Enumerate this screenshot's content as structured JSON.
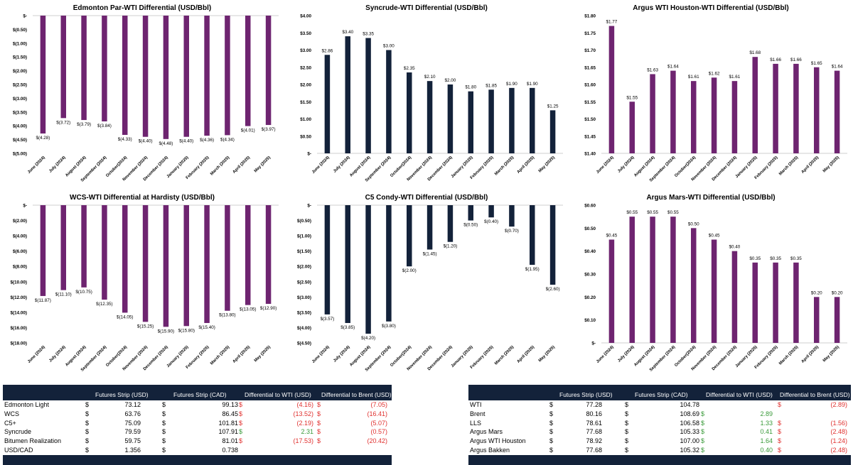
{
  "colors": {
    "purple": "#6e2470",
    "navy": "#13223a",
    "neg": "#e0312f",
    "pos": "#3a9a3a"
  },
  "chart_data": [
    {
      "id": "c1",
      "type": "bar",
      "title": "Edmonton Par-WTI Differential (USD/Bbl)",
      "color": "purple",
      "categories": [
        "June (2024)",
        "July (2024)",
        "August (2024)",
        "September (2024)",
        "October(2024)",
        "November (2024)",
        "December (2024)",
        "January (2025)",
        "February (2025)",
        "March (2025)",
        "April (2025)",
        "May (2025)"
      ],
      "values": [
        -4.28,
        -3.72,
        -3.79,
        -3.84,
        -4.33,
        -4.4,
        -4.48,
        -4.4,
        -4.36,
        -4.34,
        -4.01,
        -3.97
      ],
      "data_labels": [
        "$(4.28)",
        "$(3.72)",
        "$(3.79)",
        "$(3.84)",
        "$(4.33)",
        "$(4.40)",
        "$(4.48)",
        "$(4.40)",
        "$(4.36)",
        "$(4.34)",
        "$(4.01)",
        "$(3.97)"
      ],
      "ylim": [
        -5,
        0
      ],
      "yticks": [
        0,
        -0.5,
        -1,
        -1.5,
        -2,
        -2.5,
        -3,
        -3.5,
        -4,
        -4.5,
        -5
      ],
      "ytick_labels": [
        "$-",
        "$(0.50)",
        "$(1.00)",
        "$(1.50)",
        "$(2.00)",
        "$(2.50)",
        "$(3.00)",
        "$(3.50)",
        "$(4.00)",
        "$(4.50)",
        "$(5.00)"
      ]
    },
    {
      "id": "c2",
      "type": "bar",
      "title": "Syncrude-WTI Differential (USD/Bbl)",
      "color": "navy",
      "categories": [
        "June (2024)",
        "July (2024)",
        "August (2024)",
        "September (2024)",
        "October(2024)",
        "November (2024)",
        "December (2024)",
        "January (2025)",
        "February (2025)",
        "March (2025)",
        "April (2025)",
        "May (2025)"
      ],
      "values": [
        2.86,
        3.4,
        3.35,
        3.0,
        2.35,
        2.1,
        2.0,
        1.8,
        1.85,
        1.9,
        1.9,
        1.25
      ],
      "data_labels": [
        "$2.86",
        "$3.40",
        "$3.35",
        "$3.00",
        "$2.35",
        "$2.10",
        "$2.00",
        "$1.80",
        "$1.85",
        "$1.90",
        "$1.90",
        "$1.25"
      ],
      "ylim": [
        0,
        4
      ],
      "yticks": [
        0,
        0.5,
        1,
        1.5,
        2,
        2.5,
        3,
        3.5,
        4
      ],
      "ytick_labels": [
        "$-",
        "$0.50",
        "$1.00",
        "$1.50",
        "$2.00",
        "$2.50",
        "$3.00",
        "$3.50",
        "$4.00"
      ]
    },
    {
      "id": "c3",
      "type": "bar",
      "title": "Argus WTI Houston-WTI Differential (USD/Bbl)",
      "color": "purple",
      "categories": [
        "June (2024)",
        "July (2024)",
        "August (2024)",
        "September (2024)",
        "October(2024)",
        "November (2024)",
        "December (2024)",
        "January (2025)",
        "February (2025)",
        "March (2025)",
        "April (2025)",
        "May (2025)"
      ],
      "values": [
        1.77,
        1.55,
        1.63,
        1.64,
        1.61,
        1.62,
        1.61,
        1.68,
        1.66,
        1.66,
        1.65,
        1.64
      ],
      "data_labels": [
        "$1.77",
        "$1.55",
        "$1.63",
        "$1.64",
        "$1.61",
        "$1.62",
        "$1.61",
        "$1.68",
        "$1.66",
        "$1.66",
        "$1.65",
        "$1.64"
      ],
      "ylim": [
        1.4,
        1.8
      ],
      "yticks": [
        1.4,
        1.45,
        1.5,
        1.55,
        1.6,
        1.65,
        1.7,
        1.75,
        1.8
      ],
      "ytick_labels": [
        "$1.40",
        "$1.45",
        "$1.50",
        "$1.55",
        "$1.60",
        "$1.65",
        "$1.70",
        "$1.75",
        "$1.80"
      ]
    },
    {
      "id": "c4",
      "type": "bar",
      "title": "WCS-WTI Differential at Hardisty (USD/Bbl)",
      "color": "purple",
      "categories": [
        "June (2024)",
        "July (2024)",
        "August (2024)",
        "September (2024)",
        "October(2024)",
        "November (2024)",
        "December (2024)",
        "January (2025)",
        "February (2025)",
        "March (2025)",
        "April (2025)",
        "May (2025)"
      ],
      "values": [
        -11.87,
        -11.1,
        -10.75,
        -12.35,
        -14.05,
        -15.25,
        -15.9,
        -15.8,
        -15.4,
        -13.8,
        -13.05,
        -12.9
      ],
      "data_labels": [
        "$(11.87)",
        "$(11.10)",
        "$(10.75)",
        "$(12.35)",
        "$(14.05)",
        "$(15.25)",
        "$(15.90)",
        "$(15.80)",
        "$(15.40)",
        "$(13.80)",
        "$(13.05)",
        "$(12.90)"
      ],
      "ylim": [
        -18,
        0
      ],
      "yticks": [
        0,
        -2,
        -4,
        -6,
        -8,
        -10,
        -12,
        -14,
        -16,
        -18
      ],
      "ytick_labels": [
        "$-",
        "$(2.00)",
        "$(4.00)",
        "$(6.00)",
        "$(8.00)",
        "$(10.00)",
        "$(12.00)",
        "$(14.00)",
        "$(16.00)",
        "$(18.00)"
      ]
    },
    {
      "id": "c5",
      "type": "bar",
      "title": "C5 Condy-WTI Differential (USD/Bbl)",
      "color": "navy",
      "categories": [
        "June (2024)",
        "July (2024)",
        "August (2024)",
        "September (2024)",
        "October(2024)",
        "November (2024)",
        "December (2024)",
        "January (2025)",
        "February (2025)",
        "March (2025)",
        "April (2025)",
        "May (2025)"
      ],
      "values": [
        -3.57,
        -3.85,
        -4.2,
        -3.8,
        -2.0,
        -1.45,
        -1.2,
        -0.5,
        -0.4,
        -0.7,
        -1.95,
        -2.6
      ],
      "data_labels": [
        "$(3.57)",
        "$(3.85)",
        "$(4.20)",
        "$(3.80)",
        "$(2.00)",
        "$(1.45)",
        "$(1.20)",
        "$(0.50)",
        "$(0.40)",
        "$(0.70)",
        "$(1.95)",
        "$(2.60)"
      ],
      "ylim": [
        -4.5,
        0
      ],
      "yticks": [
        0,
        -0.5,
        -1,
        -1.5,
        -2,
        -2.5,
        -3,
        -3.5,
        -4,
        -4.5
      ],
      "ytick_labels": [
        "$-",
        "$(0.50)",
        "$(1.00)",
        "$(1.50)",
        "$(2.00)",
        "$(2.50)",
        "$(3.00)",
        "$(3.50)",
        "$(4.00)",
        "$(4.50)"
      ]
    },
    {
      "id": "c6",
      "type": "bar",
      "title": "Argus Mars-WTI Differential (USD/Bbl)",
      "color": "purple",
      "categories": [
        "June (2024)",
        "July (2024)",
        "August (2024)",
        "September (2024)",
        "October(2024)",
        "November (2024)",
        "December (2024)",
        "January (2025)",
        "February (2025)",
        "March (2025)",
        "April (2025)",
        "May (2025)"
      ],
      "values": [
        0.45,
        0.55,
        0.55,
        0.55,
        0.5,
        0.45,
        0.4,
        0.35,
        0.35,
        0.35,
        0.2,
        0.2
      ],
      "data_labels": [
        "$0.45",
        "$0.55",
        "$0.55",
        "$0.55",
        "$0.50",
        "$0.45",
        "$0.40",
        "$0.35",
        "$0.35",
        "$0.35",
        "$0.20",
        "$0.20"
      ],
      "ylim": [
        0,
        0.6
      ],
      "yticks": [
        0,
        0.1,
        0.2,
        0.3,
        0.4,
        0.5,
        0.6
      ],
      "ytick_labels": [
        "$-",
        "$0.10",
        "$0.20",
        "$0.30",
        "$0.40",
        "$0.50",
        "$0.60"
      ]
    }
  ],
  "table_left": {
    "headers": [
      "Futures Strip (USD)",
      "Futures Strip (CAD)",
      "Differential to WTI (USD)",
      "Differential to Brent (USD)"
    ],
    "rows": [
      {
        "name": "Edmonton Light",
        "usd_sym": "$",
        "usd": "73.12",
        "cad_sym": "$",
        "cad": "99.13",
        "wti_sym": "$",
        "wti": "(4.16)",
        "wti_cls": "neg",
        "brent_sym": "$",
        "brent": "(7.05)",
        "brent_cls": "neg"
      },
      {
        "name": "WCS",
        "usd_sym": "$",
        "usd": "63.76",
        "cad_sym": "$",
        "cad": "86.45",
        "wti_sym": "$",
        "wti": "(13.52)",
        "wti_cls": "neg",
        "brent_sym": "$",
        "brent": "(16.41)",
        "brent_cls": "neg"
      },
      {
        "name": "C5+",
        "usd_sym": "$",
        "usd": "75.09",
        "cad_sym": "$",
        "cad": "101.81",
        "wti_sym": "$",
        "wti": "(2.19)",
        "wti_cls": "neg",
        "brent_sym": "$",
        "brent": "(5.07)",
        "brent_cls": "neg"
      },
      {
        "name": "Syncrude",
        "usd_sym": "$",
        "usd": "79.59",
        "cad_sym": "$",
        "cad": "107.91",
        "wti_sym": "$",
        "wti": "2.31",
        "wti_cls": "pos",
        "brent_sym": "$",
        "brent": "(0.57)",
        "brent_cls": "neg"
      },
      {
        "name": "Bitumen Realization",
        "usd_sym": "$",
        "usd": "59.75",
        "cad_sym": "$",
        "cad": "81.01",
        "wti_sym": "$",
        "wti": "(17.53)",
        "wti_cls": "neg",
        "brent_sym": "$",
        "brent": "(20.42)",
        "brent_cls": "neg"
      },
      {
        "name": "USD/CAD",
        "usd_sym": "$",
        "usd": "1.356",
        "cad_sym": "$",
        "cad": "0.738",
        "wti_sym": "",
        "wti": "",
        "wti_cls": "",
        "brent_sym": "",
        "brent": "",
        "brent_cls": ""
      }
    ]
  },
  "table_right": {
    "headers": [
      "Futures Strip (USD)",
      "Futures Strip (CAD)",
      "Differential to WTI (USD)",
      "Differential to Brent (USD)"
    ],
    "rows": [
      {
        "name": "WTI",
        "usd_sym": "$",
        "usd": "77.28",
        "cad_sym": "$",
        "cad": "104.78",
        "wti_sym": "",
        "wti": "",
        "wti_cls": "",
        "brent_sym": "$",
        "brent": "(2.89)",
        "brent_cls": "neg"
      },
      {
        "name": "Brent",
        "usd_sym": "$",
        "usd": "80.16",
        "cad_sym": "$",
        "cad": "108.69",
        "wti_sym": "$",
        "wti": "2.89",
        "wti_cls": "pos",
        "brent_sym": "",
        "brent": "",
        "brent_cls": ""
      },
      {
        "name": "LLS",
        "usd_sym": "$",
        "usd": "78.61",
        "cad_sym": "$",
        "cad": "106.58",
        "wti_sym": "$",
        "wti": "1.33",
        "wti_cls": "pos",
        "brent_sym": "$",
        "brent": "(1.56)",
        "brent_cls": "neg"
      },
      {
        "name": "Argus Mars",
        "usd_sym": "$",
        "usd": "77.68",
        "cad_sym": "$",
        "cad": "105.33",
        "wti_sym": "$",
        "wti": "0.41",
        "wti_cls": "pos",
        "brent_sym": "$",
        "brent": "(2.48)",
        "brent_cls": "neg"
      },
      {
        "name": "Argus WTI Houston",
        "usd_sym": "$",
        "usd": "78.92",
        "cad_sym": "$",
        "cad": "107.00",
        "wti_sym": "$",
        "wti": "1.64",
        "wti_cls": "pos",
        "brent_sym": "$",
        "brent": "(1.24)",
        "brent_cls": "neg"
      },
      {
        "name": "Argus Bakken",
        "usd_sym": "$",
        "usd": "77.68",
        "cad_sym": "$",
        "cad": "105.32",
        "wti_sym": "$",
        "wti": "0.40",
        "wti_cls": "pos",
        "brent_sym": "$",
        "brent": "(2.48)",
        "brent_cls": "neg"
      }
    ]
  }
}
